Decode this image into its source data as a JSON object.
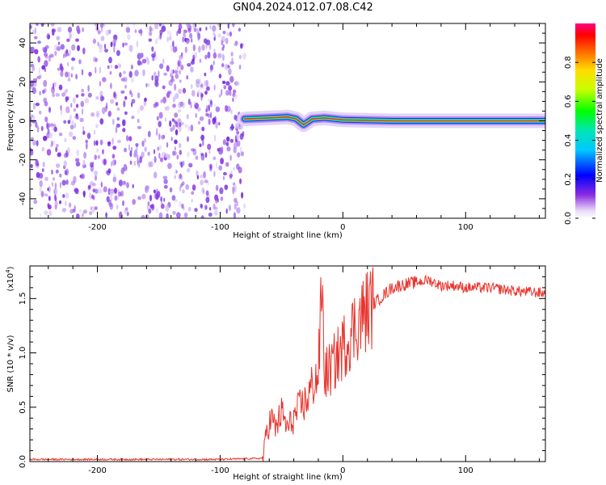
{
  "title": "GN04.2024.012.07.08.C42",
  "chart_data": [
    {
      "type": "heatmap",
      "xlabel": "Height of straight line (km)",
      "ylabel": "Frequency (Hz)",
      "xlim": [
        -255,
        165
      ],
      "ylim": [
        -50,
        50
      ],
      "xticks": [
        -200,
        -100,
        0,
        100
      ],
      "yticks": [
        -40,
        -20,
        0,
        20,
        40
      ],
      "noise_region_x": [
        -255,
        -80
      ],
      "signal_track": [
        {
          "x": -80,
          "y": 1
        },
        {
          "x": -60,
          "y": 1.5
        },
        {
          "x": -45,
          "y": 2
        },
        {
          "x": -38,
          "y": 1
        },
        {
          "x": -32,
          "y": -2
        },
        {
          "x": -25,
          "y": 1
        },
        {
          "x": -15,
          "y": 1.5
        },
        {
          "x": 0,
          "y": 0.5
        },
        {
          "x": 40,
          "y": 0
        },
        {
          "x": 100,
          "y": 0
        },
        {
          "x": 165,
          "y": 0
        }
      ],
      "colorbar": {
        "label": "Normalized spectral amplitude",
        "ticks": [
          "0.0",
          "0.2",
          "0.4",
          "0.6",
          "0.8"
        ],
        "tick_values": [
          0,
          0.2,
          0.4,
          0.6,
          0.8
        ],
        "range": [
          0,
          1
        ]
      }
    },
    {
      "type": "line",
      "xlabel": "Height of straight line (km)",
      "ylabel": "SNR (10 * v/v)",
      "multiplier": "(x10",
      "multiplier_exp": "4",
      "multiplier_close": ")",
      "xlim": [
        -255,
        165
      ],
      "ylim": [
        0,
        1.8
      ],
      "xticks": [
        -200,
        -100,
        0,
        100
      ],
      "yticks": [
        "0.0",
        "0.5",
        "1.0",
        "1.5"
      ],
      "ytick_values": [
        0,
        0.5,
        1.0,
        1.5
      ],
      "color": "#e8352e",
      "x": [
        -255,
        -200,
        -150,
        -100,
        -65,
        -62,
        -58,
        -55,
        -50,
        -45,
        -40,
        -35,
        -30,
        -25,
        -20,
        -17,
        -15,
        -10,
        -5,
        0,
        5,
        10,
        20,
        30,
        40,
        50,
        60,
        70,
        80,
        90,
        100,
        120,
        140,
        165
      ],
      "y": [
        0.02,
        0.02,
        0.02,
        0.02,
        0.03,
        0.3,
        0.4,
        0.3,
        0.45,
        0.3,
        0.4,
        0.5,
        0.55,
        0.7,
        0.8,
        1.65,
        0.8,
        0.85,
        0.95,
        1.05,
        1.15,
        1.25,
        1.4,
        1.5,
        1.6,
        1.63,
        1.65,
        1.67,
        1.62,
        1.62,
        1.6,
        1.6,
        1.57,
        1.55
      ]
    }
  ]
}
